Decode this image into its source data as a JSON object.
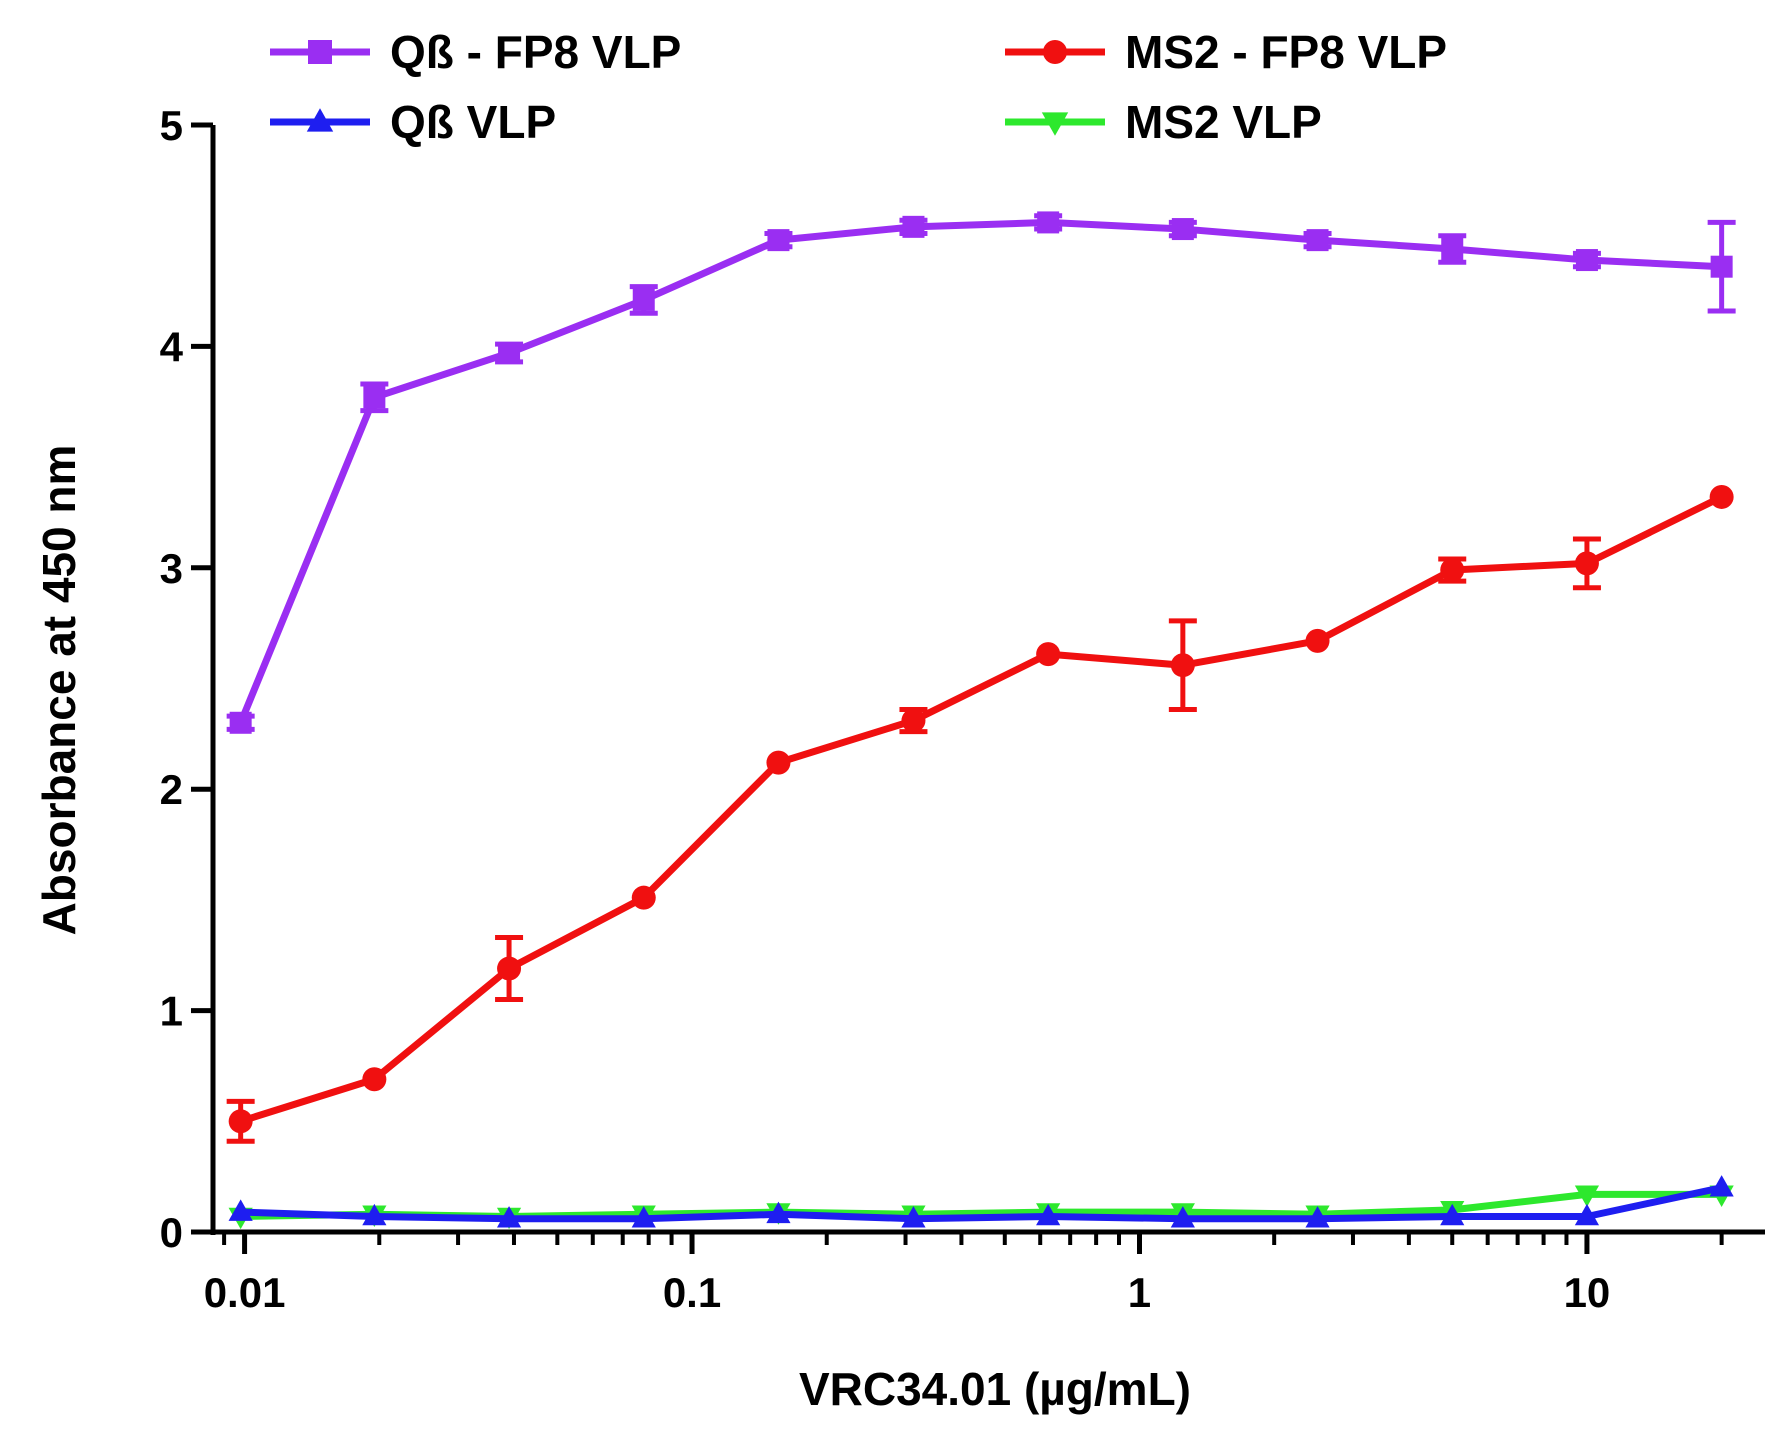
{
  "chart_data": {
    "type": "line",
    "title": "",
    "xlabel": "VRC34.01 (µg/mL)",
    "ylabel": "Absorbance at 450 nm",
    "xscale": "log",
    "xlim": [
      0.0085,
      25
    ],
    "ylim": [
      0,
      5
    ],
    "yticks": [
      0,
      1,
      2,
      3,
      4,
      5
    ],
    "yticklabels": [
      "0",
      "1",
      "2",
      "3",
      "4",
      "5"
    ],
    "xticks": [
      0.01,
      0.1,
      1,
      10
    ],
    "xticklabels": [
      "0.01",
      "0.1",
      "1",
      "10"
    ],
    "legend_position": "top",
    "x": [
      0.0098,
      0.0195,
      0.039,
      0.078,
      0.156,
      0.3125,
      0.625,
      1.25,
      2.5,
      5,
      10,
      20
    ],
    "series": [
      {
        "name": "Qß - FP8 VLP",
        "color": "#9a2ef2",
        "marker": "square",
        "values": [
          2.3,
          3.77,
          3.97,
          4.21,
          4.48,
          4.54,
          4.56,
          4.53,
          4.48,
          4.44,
          4.39,
          4.36
        ],
        "errors": [
          0.03,
          0.06,
          0.04,
          0.06,
          0.03,
          0.03,
          0.03,
          0.03,
          0.03,
          0.06,
          0.03,
          0.2
        ]
      },
      {
        "name": "MS2 - FP8 VLP",
        "color": "#f01010",
        "marker": "circle",
        "values": [
          0.5,
          0.69,
          1.19,
          1.51,
          2.12,
          2.31,
          2.61,
          2.56,
          2.67,
          2.99,
          3.02,
          3.32
        ],
        "errors": [
          0.09,
          0.02,
          0.14,
          0.02,
          0.02,
          0.05,
          0.02,
          0.2,
          0.02,
          0.05,
          0.11,
          0.02
        ]
      },
      {
        "name": "Qß VLP",
        "color": "#1e1ef0",
        "marker": "triangle-up",
        "values": [
          0.09,
          0.07,
          0.06,
          0.06,
          0.08,
          0.06,
          0.07,
          0.06,
          0.06,
          0.07,
          0.07,
          0.2
        ],
        "errors": [
          0,
          0,
          0,
          0,
          0,
          0,
          0,
          0,
          0,
          0,
          0,
          0
        ]
      },
      {
        "name": "MS2 VLP",
        "color": "#2de82d",
        "marker": "triangle-down",
        "values": [
          0.07,
          0.08,
          0.07,
          0.08,
          0.09,
          0.08,
          0.09,
          0.09,
          0.08,
          0.1,
          0.17,
          0.17
        ],
        "errors": [
          0,
          0,
          0,
          0,
          0,
          0,
          0,
          0,
          0,
          0,
          0,
          0
        ]
      }
    ]
  }
}
